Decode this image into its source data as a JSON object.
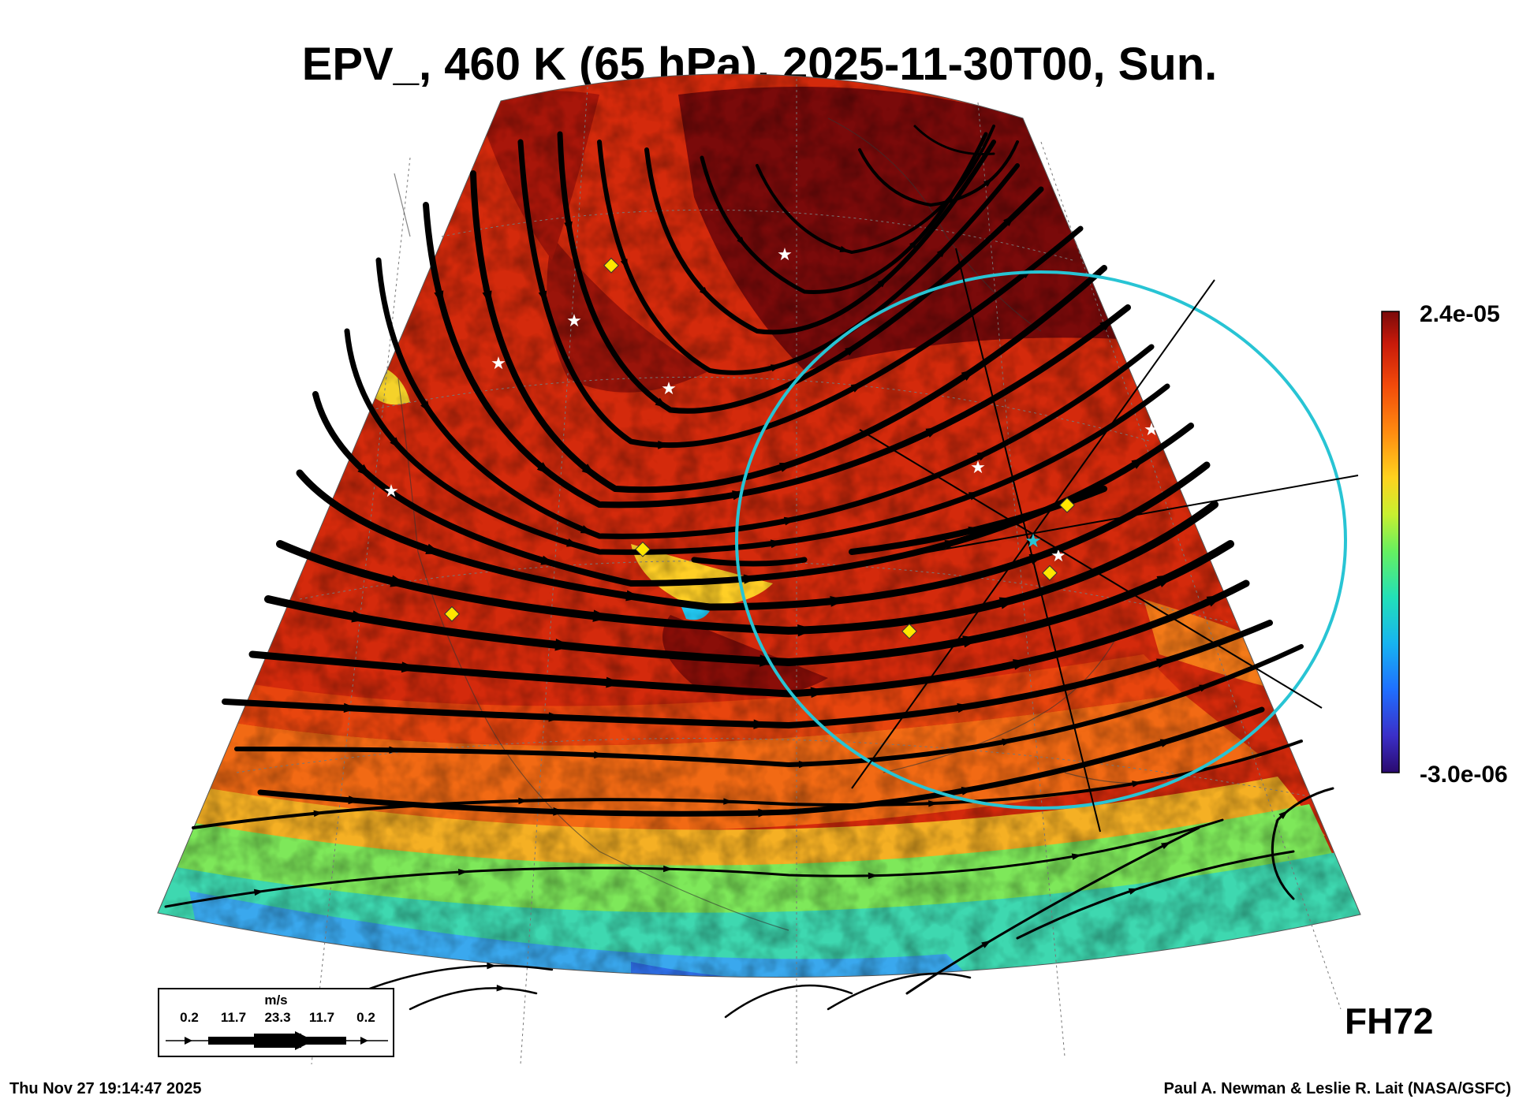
{
  "title": "EPV_, 460 K (65 hPa), 2025-11-30T00, Sun.",
  "colorbar": {
    "max_label": "2.4e-05",
    "min_label": "-3.0e-06",
    "colors": [
      "#2a0a6e",
      "#3b2fc8",
      "#1f6fff",
      "#17b4f0",
      "#22e0b8",
      "#66f060",
      "#c8f030",
      "#ffd21e",
      "#ff8a10",
      "#f24a0a",
      "#c81a0a",
      "#7a0a0a"
    ]
  },
  "forecast_hour": "FH72",
  "wind_legend": {
    "unit": "m/s",
    "values": [
      "0.2",
      "11.7",
      "23.3",
      "11.7",
      "0.2"
    ]
  },
  "timestamp": "Thu Nov 27 19:14:47 2025",
  "credit": "Paul A. Newman & Leslie R. Lait (NASA/GSFC)",
  "map": {
    "field_colors": {
      "dark_red": "#7a0a0a",
      "red": "#c8230c",
      "orange_red": "#e8450e",
      "orange": "#f47a18",
      "yellow": "#f5d22a",
      "green": "#5ce87a",
      "cyan": "#33c9e8",
      "blue": "#3f7ff0"
    },
    "circle_color": "#28c4d4",
    "station_marker_colors": {
      "star": "#ffffff",
      "diamond": "#ffe600"
    },
    "icons": [
      "white-star-marker",
      "yellow-diamond-marker",
      "cyan-star-marker",
      "streamline-arrows",
      "range-circle"
    ]
  }
}
